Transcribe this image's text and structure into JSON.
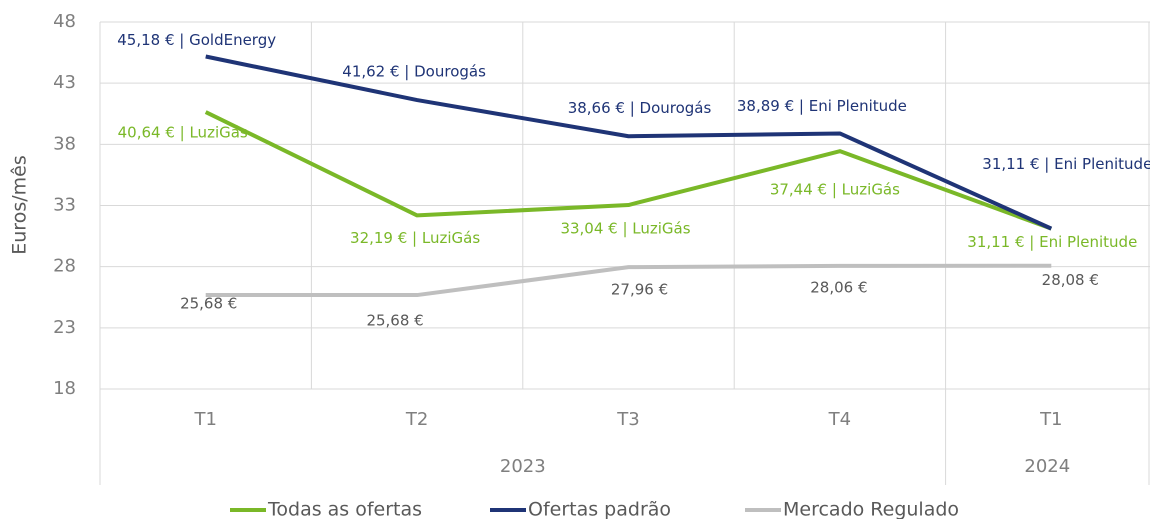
{
  "chart_data": {
    "type": "line",
    "y_label": "Euros/mês",
    "categories": [
      "T1",
      "T2",
      "T3",
      "T4",
      "T1"
    ],
    "groups": [
      {
        "label": "2023",
        "count": 4
      },
      {
        "label": "2024",
        "count": 1
      }
    ],
    "ylim": [
      18,
      48
    ],
    "yticks": [
      18,
      23,
      28,
      33,
      38,
      43,
      48
    ],
    "grid": true,
    "legend": "bottom",
    "series": [
      {
        "name": "Todas as ofertas",
        "color": "#7ab828",
        "values": [
          40.64,
          32.19,
          33.04,
          37.44,
          31.11
        ],
        "value_labels": [
          "40,64 € | LuziGás",
          "32,19 € | LuziGás",
          "33,04 € | LuziGás",
          "37,44 € | LuziGás",
          "31,11 € | Eni Plenitude"
        ]
      },
      {
        "name": "Ofertas padrão",
        "color": "#1f3476",
        "values": [
          45.18,
          41.62,
          38.66,
          38.89,
          31.11
        ],
        "value_labels": [
          "45,18 € | GoldEnergy",
          "41,62 € | Dourogás",
          "38,66 € | Dourogás",
          "38,89 € | Eni Plenitude",
          "31,11 € | Eni Plenitude"
        ]
      },
      {
        "name": "Mercado Regulado",
        "color": "#bfbfbf",
        "values": [
          25.68,
          25.68,
          27.96,
          28.06,
          28.08
        ],
        "value_labels": [
          "25,68 €",
          "25,68 €",
          "27,96 €",
          "28,06 €",
          "28,08 €"
        ]
      }
    ]
  }
}
